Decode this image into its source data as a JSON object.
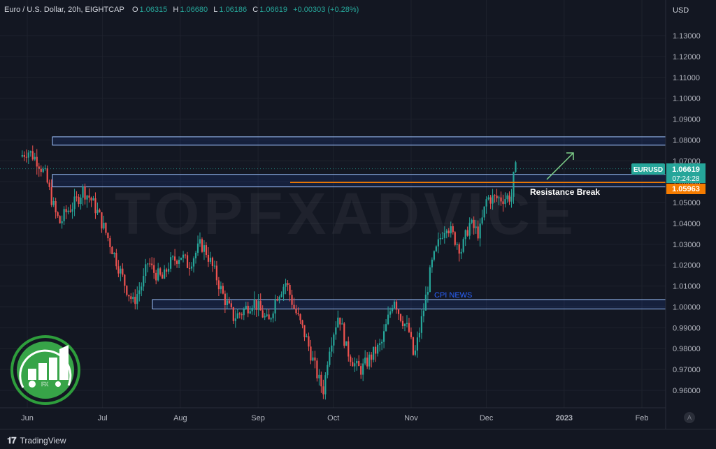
{
  "header": {
    "symbol": "Euro / U.S. Dollar, 20h, EIGHTCAP",
    "o_label": "O",
    "o_value": "1.06315",
    "h_label": "H",
    "h_value": "1.06680",
    "l_label": "L",
    "l_value": "1.06186",
    "c_label": "C",
    "c_value": "1.06619",
    "change": "+0.00303 (+0.28%)"
  },
  "price_axis": {
    "currency": "USD",
    "ticks": [
      "1.13000",
      "1.12000",
      "1.11000",
      "1.10000",
      "1.09000",
      "1.08000",
      "1.07000",
      "1.06000",
      "1.05000",
      "1.04000",
      "1.03000",
      "1.02000",
      "1.01000",
      "1.00000",
      "0.99000",
      "0.98000",
      "0.97000",
      "0.96000"
    ]
  },
  "time_axis": {
    "ticks": [
      "Jun",
      "Jul",
      "Aug",
      "Sep",
      "Oct",
      "Nov",
      "Dec",
      "2023",
      "Feb"
    ]
  },
  "price_labels": {
    "symbol_tag": "EURUSD",
    "last_price": "1.06619",
    "countdown": "07:24:28",
    "line_price": "1.05963"
  },
  "annotations": {
    "resistance": "Resistance Break",
    "cpi": "CPI NEWS"
  },
  "watermark": "TOPFXADVICE",
  "logo_text": "FX",
  "footer": {
    "brand": "TradingView",
    "auto": "A"
  },
  "colors": {
    "up": "#26a69a",
    "down": "#ef5350",
    "line": "#f57c00",
    "zone": "#9fc3ff",
    "bg": "#131722"
  },
  "chart_data": {
    "type": "line",
    "title": "Euro / U.S. Dollar, 20h, EIGHTCAP",
    "xlabel": "",
    "ylabel": "USD",
    "ylim": [
      0.955,
      1.135
    ],
    "x_range": [
      "2022-05-30",
      "2023-02-25"
    ],
    "series": [
      {
        "values": [
          [
            "2022-05-30",
            1.072
          ],
          [
            "2022-06-02",
            1.075
          ],
          [
            "2022-06-06",
            1.07
          ],
          [
            "2022-06-09",
            1.063
          ],
          [
            "2022-06-13",
            1.045
          ],
          [
            "2022-06-15",
            1.04
          ],
          [
            "2022-06-17",
            1.045
          ],
          [
            "2022-06-21",
            1.05
          ],
          [
            "2022-06-24",
            1.056
          ],
          [
            "2022-06-27",
            1.052
          ],
          [
            "2022-06-30",
            1.045
          ],
          [
            "2022-07-05",
            1.03
          ],
          [
            "2022-07-08",
            1.02
          ],
          [
            "2022-07-11",
            1.01
          ],
          [
            "2022-07-14",
            1.002
          ],
          [
            "2022-07-18",
            1.012
          ],
          [
            "2022-07-20",
            1.022
          ],
          [
            "2022-07-22",
            1.017
          ],
          [
            "2022-07-26",
            1.013
          ],
          [
            "2022-07-28",
            1.02
          ],
          [
            "2022-08-02",
            1.025
          ],
          [
            "2022-08-05",
            1.02
          ],
          [
            "2022-08-10",
            1.03
          ],
          [
            "2022-08-12",
            1.027
          ],
          [
            "2022-08-16",
            1.015
          ],
          [
            "2022-08-19",
            1.005
          ],
          [
            "2022-08-23",
            0.995
          ],
          [
            "2022-08-26",
            0.997
          ],
          [
            "2022-08-31",
            1.003
          ],
          [
            "2022-09-06",
            0.992
          ],
          [
            "2022-09-09",
            1.005
          ],
          [
            "2022-09-13",
            1.012
          ],
          [
            "2022-09-16",
            1.0
          ],
          [
            "2022-09-21",
            0.985
          ],
          [
            "2022-09-26",
            0.965
          ],
          [
            "2022-09-28",
            0.96
          ],
          [
            "2022-09-30",
            0.98
          ],
          [
            "2022-10-04",
            0.997
          ],
          [
            "2022-10-07",
            0.98
          ],
          [
            "2022-10-11",
            0.971
          ],
          [
            "2022-10-13",
            0.97
          ],
          [
            "2022-10-18",
            0.978
          ],
          [
            "2022-10-21",
            0.982
          ],
          [
            "2022-10-26",
            1.005
          ],
          [
            "2022-10-28",
            0.997
          ],
          [
            "2022-11-01",
            0.988
          ],
          [
            "2022-11-03",
            0.975
          ],
          [
            "2022-11-07",
            1.0
          ],
          [
            "2022-11-10",
            1.02
          ],
          [
            "2022-11-14",
            1.035
          ],
          [
            "2022-11-16",
            1.04
          ],
          [
            "2022-11-18",
            1.035
          ],
          [
            "2022-11-22",
            1.027
          ],
          [
            "2022-11-25",
            1.04
          ],
          [
            "2022-11-29",
            1.035
          ],
          [
            "2022-12-02",
            1.052
          ],
          [
            "2022-12-05",
            1.052
          ],
          [
            "2022-12-08",
            1.052
          ],
          [
            "2022-12-12",
            1.053
          ],
          [
            "2022-12-13",
            1.066
          ]
        ]
      }
    ],
    "horizontal_line": 1.05963,
    "zones": [
      {
        "low": 1.0775,
        "high": 1.0815
      },
      {
        "low": 1.0575,
        "high": 1.0635
      },
      {
        "low": 0.999,
        "high": 1.0035
      }
    ],
    "grid": true
  }
}
